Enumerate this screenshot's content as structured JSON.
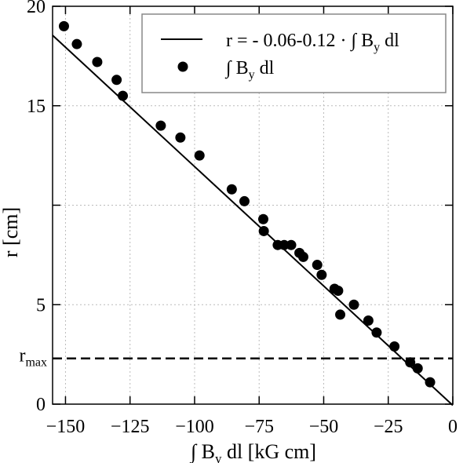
{
  "chart_data": {
    "type": "scatter",
    "xlabel": "∫ B",
    "xlabel_sub": "y",
    "xlabel_tail": " dl [kG cm]",
    "ylabel": "r [cm]",
    "xlim": [
      -155,
      0
    ],
    "ylim": [
      0,
      20
    ],
    "xticks": [
      -150,
      -125,
      -100,
      -75,
      -50,
      -25,
      0
    ],
    "xtick_labels": [
      "−150",
      "−125",
      "−100",
      "−75",
      "−50",
      "−25",
      "0"
    ],
    "yticks": [
      0,
      5,
      15,
      20
    ],
    "ytick_labels": [
      "0",
      "5",
      "15",
      "20"
    ],
    "ygrid": [
      0,
      5,
      10,
      15,
      20
    ],
    "grid": true,
    "rmax": {
      "label": "r",
      "sub": "max",
      "y": 2.3
    },
    "legend": {
      "placement": "top-right",
      "line_label": "r = - 0.06-0.12 · ∫ B",
      "line_label_sub": "y",
      "line_label_tail": " dl",
      "points_label": "∫ B",
      "points_label_sub": "y",
      "points_label_tail": " dl"
    },
    "fit": {
      "intercept": -0.06,
      "slope": -0.12
    },
    "points": [
      {
        "x": -150.6,
        "y": 19.0
      },
      {
        "x": -145.6,
        "y": 18.1
      },
      {
        "x": -137.7,
        "y": 17.2
      },
      {
        "x": -130.2,
        "y": 16.3
      },
      {
        "x": -127.8,
        "y": 15.5
      },
      {
        "x": -113.1,
        "y": 14.0
      },
      {
        "x": -105.5,
        "y": 13.4
      },
      {
        "x": -98.1,
        "y": 12.5
      },
      {
        "x": -85.6,
        "y": 10.8
      },
      {
        "x": -80.7,
        "y": 10.2
      },
      {
        "x": -73.4,
        "y": 9.3
      },
      {
        "x": -73.2,
        "y": 8.7
      },
      {
        "x": -67.8,
        "y": 8.0
      },
      {
        "x": -65.3,
        "y": 8.0
      },
      {
        "x": -62.6,
        "y": 8.0
      },
      {
        "x": -59.4,
        "y": 7.6
      },
      {
        "x": -57.9,
        "y": 7.4
      },
      {
        "x": -52.5,
        "y": 7.0
      },
      {
        "x": -50.8,
        "y": 6.5
      },
      {
        "x": -45.8,
        "y": 5.8
      },
      {
        "x": -44.4,
        "y": 5.7
      },
      {
        "x": -43.6,
        "y": 4.5
      },
      {
        "x": -38.3,
        "y": 5.0
      },
      {
        "x": -32.7,
        "y": 4.2
      },
      {
        "x": -29.5,
        "y": 3.6
      },
      {
        "x": -22.6,
        "y": 2.9
      },
      {
        "x": -16.5,
        "y": 2.1
      },
      {
        "x": -13.6,
        "y": 1.8
      },
      {
        "x": -8.8,
        "y": 1.1
      }
    ]
  }
}
